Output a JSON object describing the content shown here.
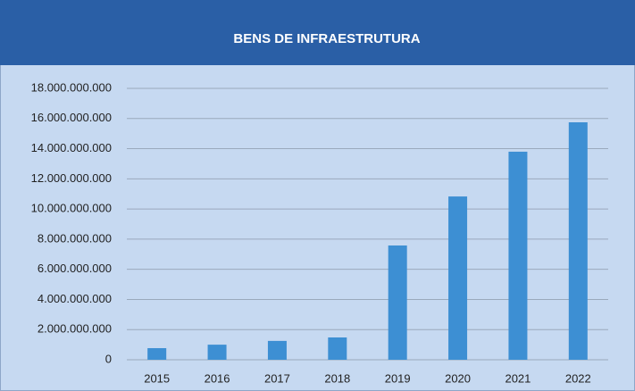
{
  "chart_data": {
    "type": "bar",
    "title": "BENS DE INFRAESTRUTURA",
    "categories": [
      "2015",
      "2016",
      "2017",
      "2018",
      "2019",
      "2020",
      "2021",
      "2022"
    ],
    "values": [
      770000000,
      1000000000,
      1250000000,
      1480000000,
      7580000000,
      10830000000,
      13800000000,
      15750000000
    ],
    "color": "#3d8fd3",
    "ylim": [
      0,
      18000000000
    ],
    "yticks": [
      0,
      {
        "value": 2000000000,
        "label": "2.000.000.000"
      },
      {
        "value": 4000000000,
        "label": "4.000.000.000"
      },
      {
        "value": 6000000000,
        "label": "6.000.000.000"
      },
      {
        "value": 8000000000,
        "label": "8.000.000.000"
      },
      {
        "value": 10000000000,
        "label": "10.000.000.000"
      },
      {
        "value": 12000000000,
        "label": "12.000.000.000"
      },
      {
        "value": 14000000000,
        "label": "14.000.000.000"
      },
      {
        "value": 16000000000,
        "label": "16.000.000.000"
      },
      {
        "value": 18000000000,
        "label": "18.000.000.000"
      }
    ],
    "grid": true
  }
}
